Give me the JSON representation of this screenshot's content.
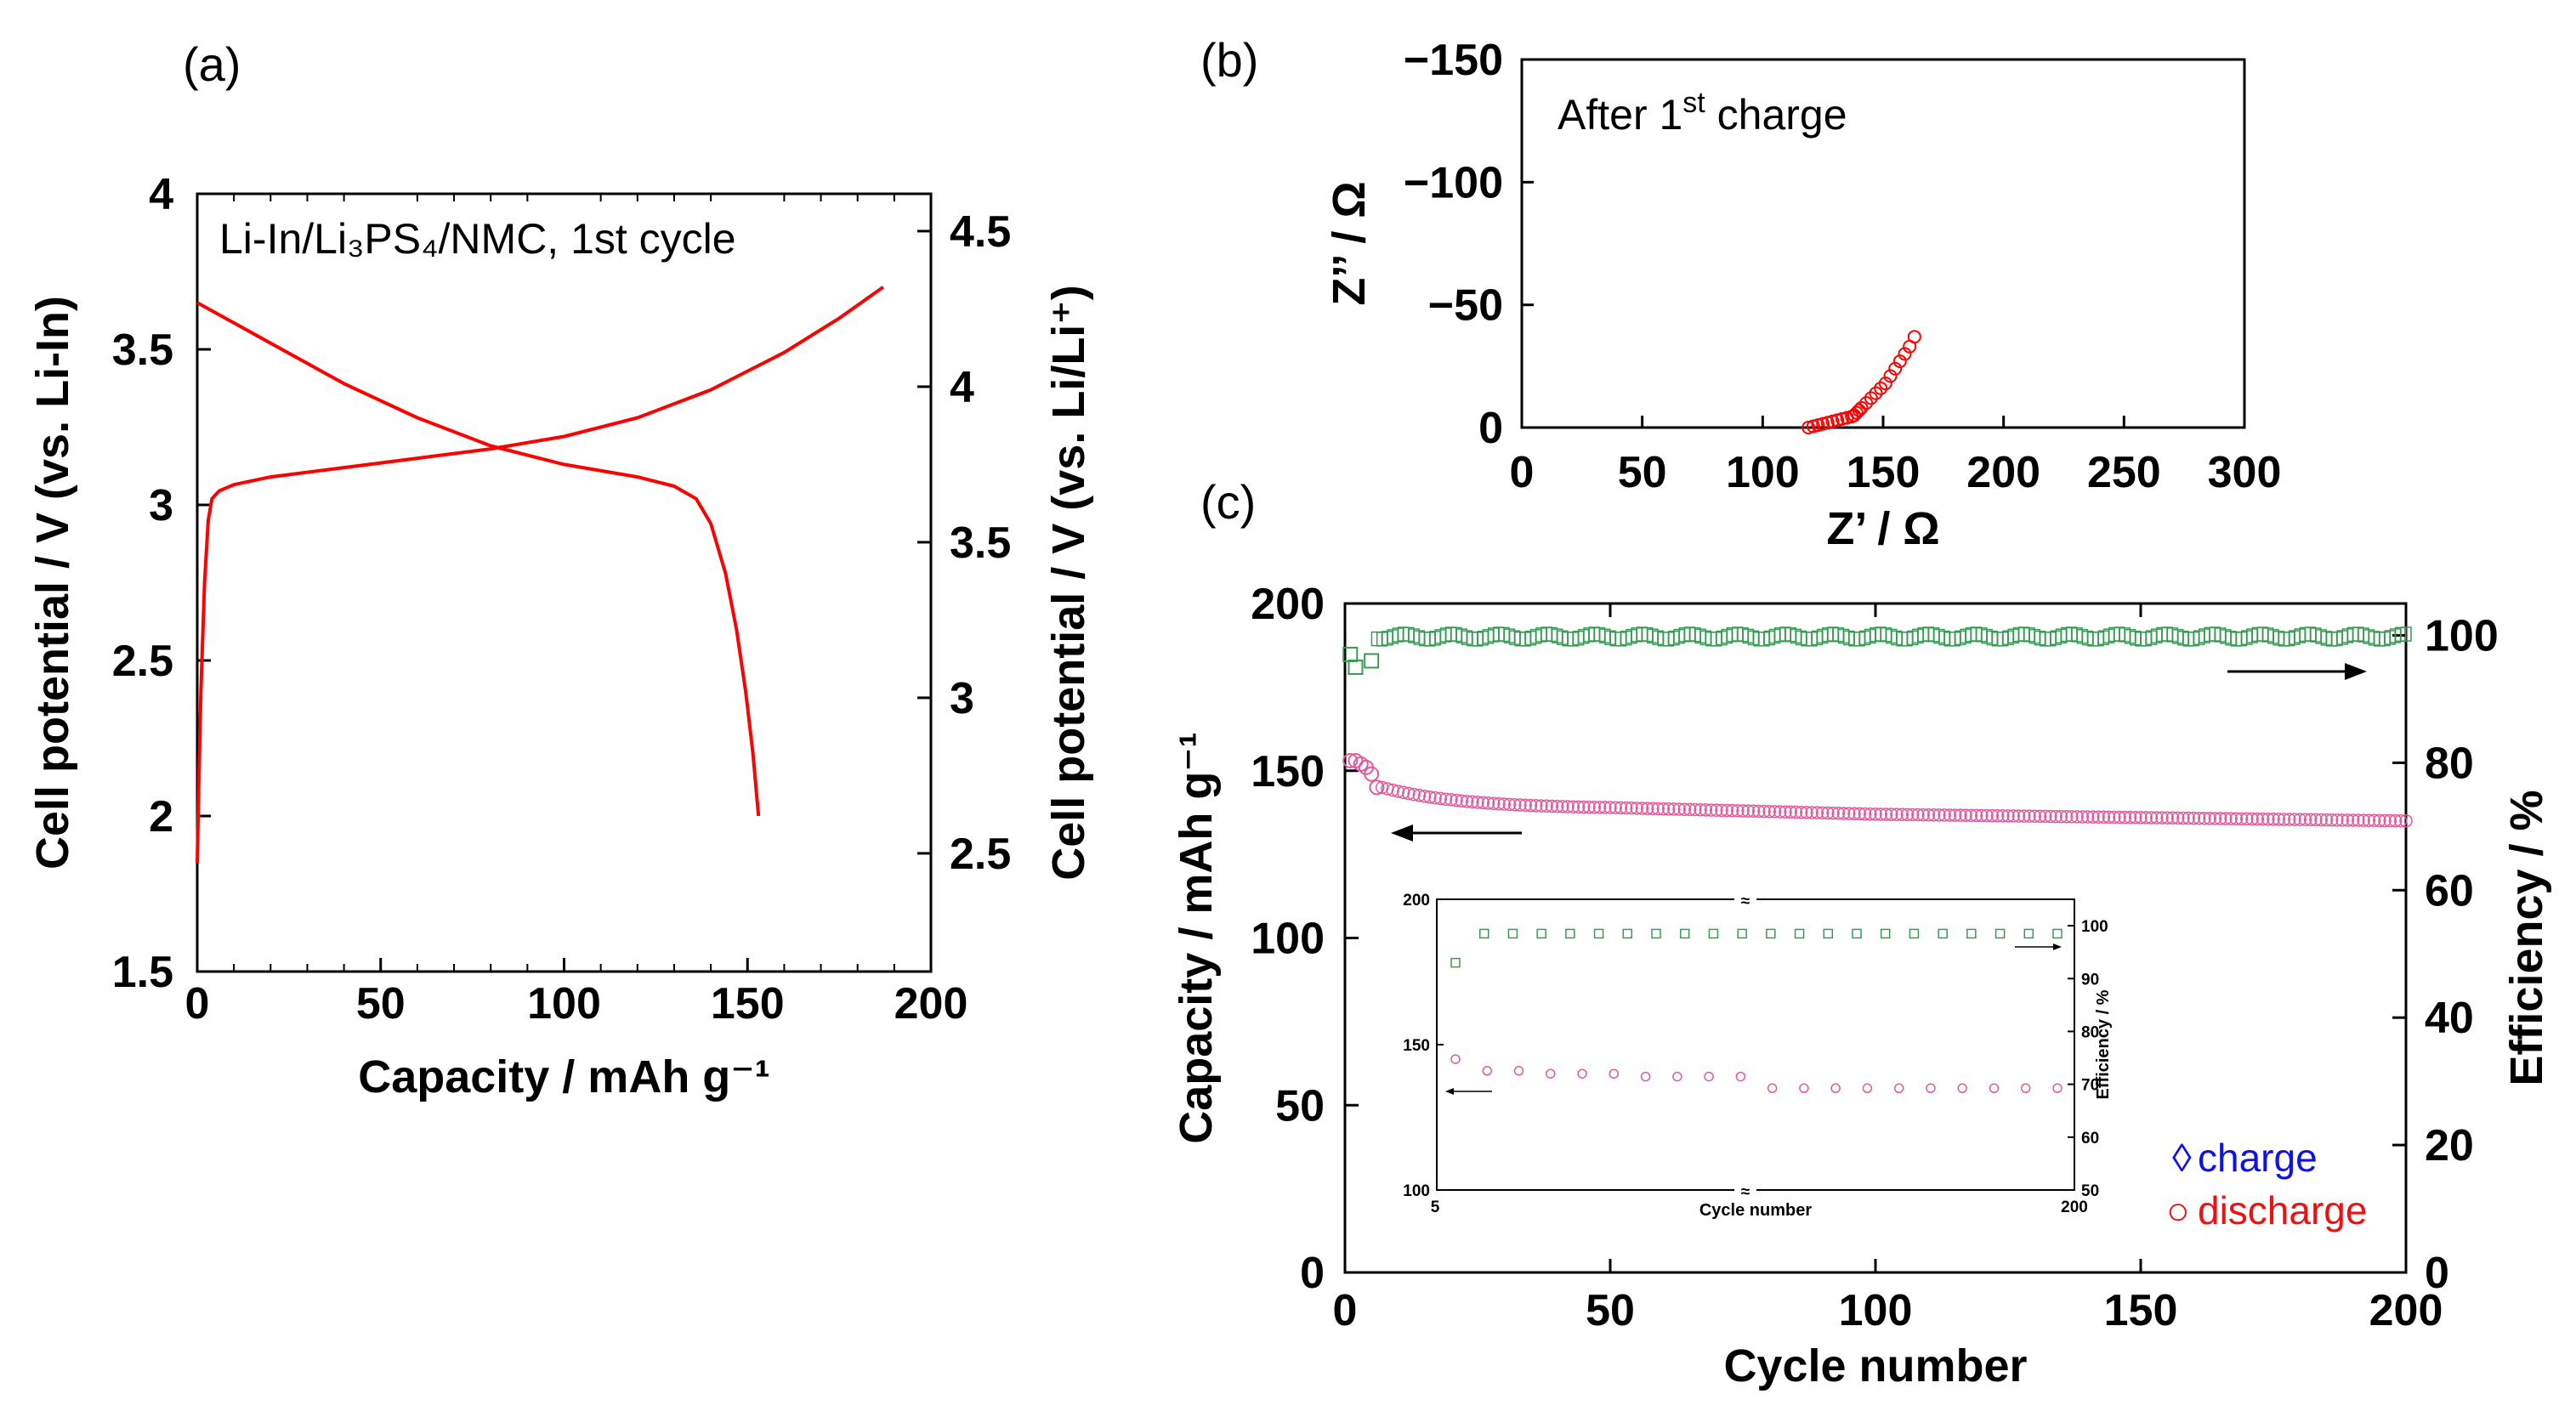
{
  "colors": {
    "curve": "#ff0000",
    "charge_marker": "#2e9e5a",
    "discharge_marker": "#ff2020",
    "efficiency_marker": "#3a9a55",
    "capacity_marker": "#e05a9c",
    "legend_charge": "#1010ee",
    "legend_discharge": "#ee1111",
    "axis": "#000000"
  },
  "chart_data": [
    {
      "id": "a",
      "type": "line",
      "panel_label": "(a)",
      "xlabel": "Capacity / mAh g⁻¹",
      "ylabel": "Cell potential / V (vs. Li-In)",
      "y2label": "Cell potential / V (vs. Li/Li⁺)",
      "xlim": [
        0,
        200
      ],
      "ylim": [
        1.5,
        4
      ],
      "y2lim": [
        2.12,
        4.62
      ],
      "x_ticks": [
        "0",
        "50",
        "100",
        "150",
        "200"
      ],
      "y_ticks": [
        "1.5",
        "2",
        "2.5",
        "3",
        "3.5",
        "4"
      ],
      "y2_ticks": [
        "2.5",
        "3",
        "3.5",
        "4",
        "4.5"
      ],
      "annotation": "Li-In/Li₃PS₄/NMC, 1st cycle",
      "series": [
        {
          "name": "charge",
          "x": [
            0,
            0.5,
            1,
            2,
            3,
            4,
            6,
            10,
            20,
            40,
            60,
            80,
            100,
            120,
            140,
            160,
            175,
            187
          ],
          "y": [
            1.85,
            2.15,
            2.4,
            2.75,
            2.95,
            3.02,
            3.045,
            3.065,
            3.09,
            3.12,
            3.15,
            3.18,
            3.22,
            3.28,
            3.37,
            3.49,
            3.6,
            3.7
          ]
        },
        {
          "name": "discharge",
          "x": [
            0,
            20,
            40,
            60,
            80,
            100,
            120,
            130,
            136,
            140,
            144,
            147,
            149.5,
            151.5,
            153
          ],
          "y": [
            3.65,
            3.52,
            3.39,
            3.28,
            3.19,
            3.13,
            3.09,
            3.06,
            3.02,
            2.94,
            2.78,
            2.6,
            2.4,
            2.2,
            2.0
          ]
        }
      ]
    },
    {
      "id": "b",
      "type": "scatter",
      "panel_label": "(b)",
      "xlabel": "Z’ / Ω",
      "ylabel": "Z’’ / Ω",
      "xlim": [
        0,
        300
      ],
      "ylim": [
        0,
        -150
      ],
      "x_ticks": [
        "0",
        "50",
        "100",
        "150",
        "200",
        "250",
        "300"
      ],
      "y_ticks": [
        "0",
        "−50",
        "−100",
        "−150"
      ],
      "annotation_main": "After 1",
      "annotation_sup": "st",
      "annotation_tail": " charge",
      "series": [
        {
          "name": "After 1st charge",
          "x": [
            119,
            121,
            123,
            125,
            127,
            129,
            131,
            133,
            135,
            137,
            138,
            139,
            140,
            141,
            143,
            145,
            147,
            149,
            151,
            153,
            155,
            157,
            159,
            161,
            163
          ],
          "y": [
            0,
            -0.5,
            -1,
            -1.5,
            -2,
            -2.5,
            -3,
            -3.5,
            -4,
            -4.5,
            -5,
            -6,
            -7,
            -8,
            -10,
            -12,
            -14,
            -16,
            -18,
            -21,
            -24,
            -27,
            -30,
            -33,
            -37
          ]
        }
      ]
    },
    {
      "id": "c",
      "type": "scatter",
      "panel_label": "(c)",
      "xlabel": "Cycle number",
      "ylabel": "Capacity / mAh g⁻¹",
      "y2label": "Efficiency / %",
      "xlim": [
        0,
        200
      ],
      "ylim": [
        0,
        200
      ],
      "y2lim": [
        0,
        105
      ],
      "x_ticks": [
        "0",
        "50",
        "100",
        "150",
        "200"
      ],
      "y_ticks": [
        "0",
        "50",
        "100",
        "150",
        "200"
      ],
      "y2_ticks": [
        "0",
        "20",
        "40",
        "60",
        "80",
        "100"
      ],
      "legend": [
        {
          "symbol": "◊",
          "label": "charge"
        },
        {
          "symbol": "○",
          "label": "discharge"
        }
      ],
      "efficiency_start": [
        {
          "cycle": 1,
          "value": 97
        },
        {
          "cycle": 2,
          "value": 95
        },
        {
          "cycle": 5,
          "value": 96
        }
      ],
      "efficiency_plateau": 99.8,
      "capacity_start": [
        {
          "cycle": 1,
          "value": 153
        },
        {
          "cycle": 2,
          "value": 153
        },
        {
          "cycle": 3,
          "value": 152
        },
        {
          "cycle": 4,
          "value": 151
        },
        {
          "cycle": 5,
          "value": 149
        },
        {
          "cycle": 6,
          "value": 145
        }
      ],
      "capacity_trend": {
        "cycle_7": 145,
        "cycle_50": 139,
        "cycle_100": 137,
        "cycle_200": 135
      }
    },
    {
      "id": "c-inset",
      "type": "scatter",
      "xlabel": "Cycle number",
      "y2label": "Efficiency / %",
      "x_ticks": [
        "5",
        "200"
      ],
      "y_ticks": [
        "100",
        "150",
        "200"
      ],
      "y2_ticks": [
        "50",
        "60",
        "70",
        "80",
        "90",
        "100"
      ],
      "axis_break": "≈",
      "efficiency": [
        93,
        98.5,
        98.5,
        98.5,
        98.5,
        98.5,
        98.5,
        98.5,
        98.5,
        98.5,
        98.5,
        98.5,
        98.5,
        98.5,
        98.5,
        98.5,
        98.5,
        98.5,
        98.5,
        98.5,
        98.5,
        98.5
      ],
      "capacity": [
        145,
        141,
        141,
        140,
        140,
        140,
        139,
        139,
        139,
        139,
        135,
        135,
        135,
        135,
        135,
        135,
        135,
        135,
        135,
        135
      ]
    }
  ]
}
